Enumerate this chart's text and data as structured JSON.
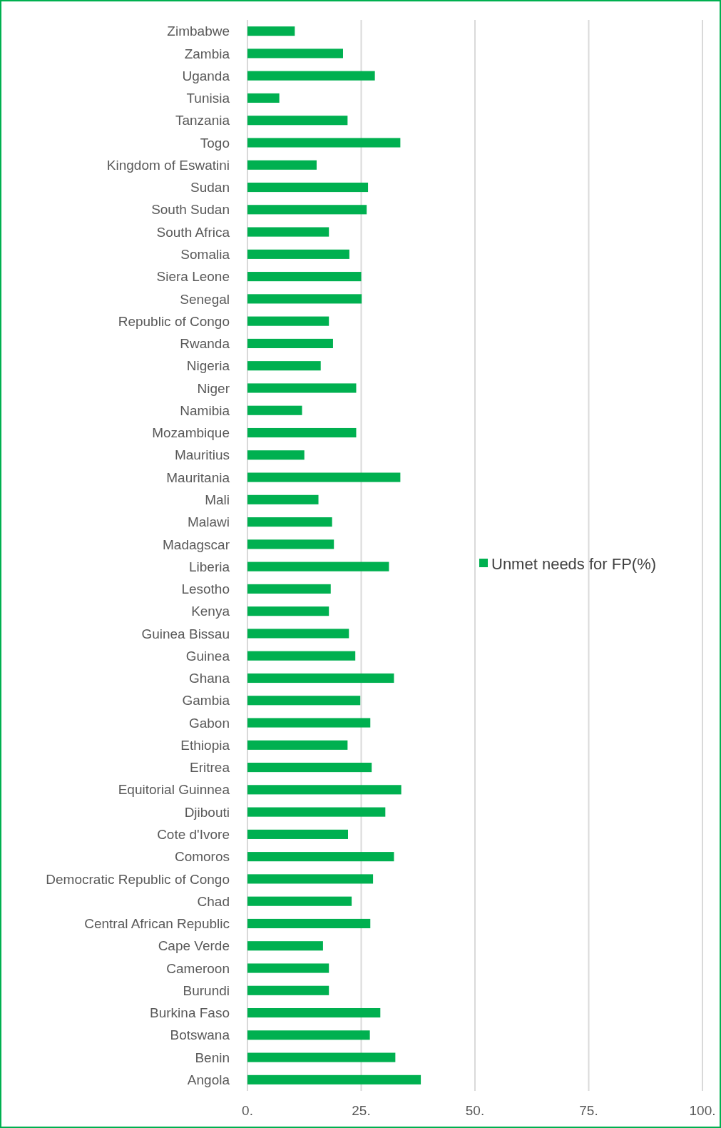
{
  "chart_data": {
    "type": "bar",
    "orientation": "horizontal",
    "categories": [
      "Zimbabwe",
      "Zambia",
      "Uganda",
      "Tunisia",
      "Tanzania",
      "Togo",
      "Kingdom of Eswatini",
      "Sudan",
      "South Sudan",
      "South Africa",
      "Somalia",
      "Siera Leone",
      "Senegal",
      "Republic of Congo",
      "Rwanda",
      "Nigeria",
      "Niger",
      "Namibia",
      "Mozambique",
      "Mauritius",
      "Mauritania",
      "Mali",
      "Malawi",
      "Madagscar",
      "Liberia",
      "Lesotho",
      "Kenya",
      "Guinea Bissau",
      "Guinea ",
      "Ghana",
      "Gambia",
      "Gabon",
      "Ethiopia",
      "Eritrea",
      "Equitorial Guinnea",
      "Djibouti",
      "Cote d'Ivore",
      "Comoros",
      "Democratic Republic of Congo",
      "Chad",
      "Central African Republic",
      "Cape Verde",
      "Cameroon",
      "Burundi",
      "Burkina Faso",
      "Botswana",
      "Benin",
      "Angola"
    ],
    "series": [
      {
        "name": "Unmet needs for FP(%)",
        "color": "#00b050",
        "values": [
          10.4,
          21,
          28,
          7,
          22,
          33.6,
          15.2,
          26.5,
          26.2,
          17.9,
          22.4,
          25,
          25.1,
          17.9,
          18.8,
          16.1,
          23.9,
          12,
          23.9,
          12.5,
          33.6,
          15.6,
          18.6,
          19,
          31.1,
          18.3,
          17.9,
          22.3,
          23.7,
          32.2,
          24.8,
          27,
          22,
          27.3,
          33.8,
          30.3,
          22.1,
          32.2,
          27.6,
          22.9,
          27,
          16.6,
          17.9,
          17.9,
          29.2,
          26.9,
          32.5,
          38.1
        ]
      }
    ],
    "xlim": [
      0,
      100
    ],
    "xticks": [
      {
        "value": 0,
        "label": "0."
      },
      {
        "value": 25,
        "label": "25."
      },
      {
        "value": 50,
        "label": "50."
      },
      {
        "value": 75,
        "label": "75."
      },
      {
        "value": 100,
        "label": "100."
      }
    ],
    "grid": "x",
    "legend": "right"
  }
}
